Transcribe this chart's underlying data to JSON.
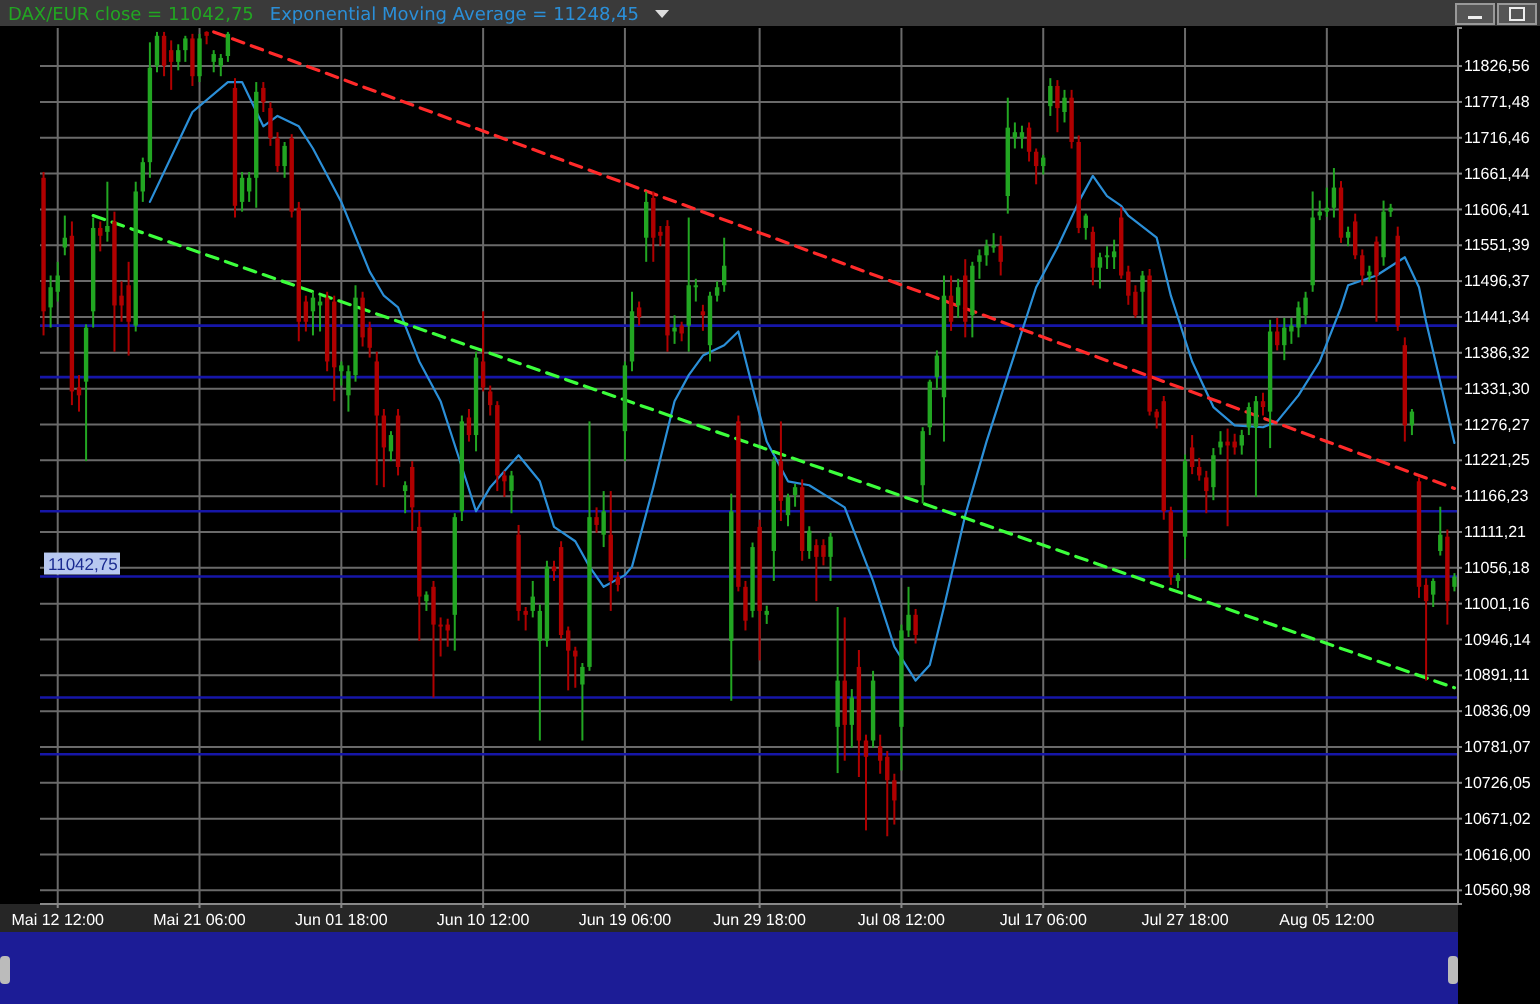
{
  "chart_data": {
    "type": "candlestick",
    "categories": [
      null,
      null,
      "Mai 12 12:00",
      null,
      null,
      null,
      null,
      null,
      null,
      null,
      null,
      null,
      null,
      null,
      null,
      null,
      null,
      null,
      null,
      null,
      null,
      null,
      "Mai 21 06:00",
      null,
      null,
      null,
      null,
      null,
      null,
      null,
      null,
      null,
      null,
      null,
      null,
      null,
      null,
      null,
      null,
      null,
      null,
      null,
      "Jun 01 18:00",
      null,
      null,
      null,
      null,
      null,
      null,
      null,
      null,
      null,
      null,
      null,
      null,
      null,
      null,
      null,
      null,
      null,
      null,
      null,
      "Jun 10 12:00",
      null,
      null,
      null,
      null,
      null,
      null,
      null,
      null,
      null,
      null,
      null,
      null,
      null,
      null,
      null,
      null,
      null,
      null,
      null,
      "Jun 19 06:00",
      null,
      null,
      null,
      null,
      null,
      null,
      null,
      null,
      null,
      null,
      null,
      null,
      null,
      null,
      null,
      null,
      null,
      null,
      "Jun 29 18:00",
      null,
      null,
      null,
      null,
      null,
      null,
      null,
      null,
      null,
      null,
      null,
      null,
      null,
      null,
      null,
      null,
      null,
      null,
      null,
      "Jul 08 12:00",
      null,
      null,
      null,
      null,
      null,
      null,
      null,
      null,
      null,
      null,
      null,
      null,
      null,
      null,
      null,
      null,
      null,
      null,
      null,
      "Jul 17 06:00",
      null,
      null,
      null,
      null,
      null,
      null,
      null,
      null,
      null,
      null,
      null,
      null,
      null,
      null,
      null,
      null,
      null,
      null,
      null,
      "Jul 27 18:00",
      null,
      null,
      null,
      null,
      null,
      null,
      null,
      null,
      null,
      null,
      null,
      null,
      null,
      null,
      null,
      null,
      null,
      null,
      null,
      "Aug 05 12:00",
      null,
      null,
      null,
      null,
      null,
      null,
      null,
      null,
      null,
      null,
      null,
      null,
      null,
      null,
      null,
      null,
      null,
      null
    ],
    "ylim": [
      10540,
      11885
    ],
    "yticks": [
      {
        "value": 10560.98,
        "label": "10560,98"
      },
      {
        "value": 10616.0,
        "label": "10616,00"
      },
      {
        "value": 10671.02,
        "label": "10671,02"
      },
      {
        "value": 10726.05,
        "label": "10726,05"
      },
      {
        "value": 10781.07,
        "label": "10781,07"
      },
      {
        "value": 10836.09,
        "label": "10836,09"
      },
      {
        "value": 10891.11,
        "label": "10891,11"
      },
      {
        "value": 10946.14,
        "label": "10946,14"
      },
      {
        "value": 11001.16,
        "label": "11001,16"
      },
      {
        "value": 11056.18,
        "label": "11056,18"
      },
      {
        "value": 11111.21,
        "label": "11111,21"
      },
      {
        "value": 11166.23,
        "label": "11166,23"
      },
      {
        "value": 11221.25,
        "label": "11221,25"
      },
      {
        "value": 11276.27,
        "label": "11276,27"
      },
      {
        "value": 11331.3,
        "label": "11331,30"
      },
      {
        "value": 11386.32,
        "label": "11386,32"
      },
      {
        "value": 11441.34,
        "label": "11441,34"
      },
      {
        "value": 11496.37,
        "label": "11496,37"
      },
      {
        "value": 11551.39,
        "label": "11551,39"
      },
      {
        "value": 11606.41,
        "label": "11606,41"
      },
      {
        "value": 11661.44,
        "label": "11661,44"
      },
      {
        "value": 11716.46,
        "label": "11716,46"
      },
      {
        "value": 11771.48,
        "label": "11771,48"
      },
      {
        "value": 11826.56,
        "label": "11826,56"
      }
    ],
    "grid": true,
    "legend": "top left",
    "ref_lines": [
      {
        "axis": "y",
        "value": 11428,
        "color": "#1616a8"
      },
      {
        "axis": "y",
        "value": 11349,
        "color": "#1616a8"
      },
      {
        "axis": "y",
        "value": 11143,
        "color": "#1616a8"
      },
      {
        "axis": "y",
        "value": 11042.75,
        "label": "11042,75",
        "color": "#1616a8"
      },
      {
        "axis": "y",
        "value": 10857,
        "color": "#1616a8"
      },
      {
        "axis": "y",
        "value": 10770,
        "color": "#1616a8"
      }
    ],
    "series": [
      {
        "name": "DAX/EUR close = 11042,75",
        "color": "#22a622",
        "colors": [
          "#b00000",
          "#22a622",
          "#22a622",
          "#22a622",
          "#b00000",
          "#b00000",
          "#22a622",
          "#22a622",
          "#b00000",
          "#22a622",
          "#b00000",
          "#b00000",
          "#b00000",
          "#22a622",
          "#22a622",
          "#22a622",
          "#22a622",
          "#b00000",
          "#b00000",
          "#22a622",
          "#22a622",
          "#b00000",
          "#22a622",
          "#b00000",
          "#22a622",
          "#22a622",
          "#22a622",
          "#b00000",
          "#22a622",
          "#22a622",
          "#22a622",
          "#b00000",
          "#b00000",
          "#b00000",
          "#22a622",
          "#b00000",
          "#b00000",
          "#b00000",
          "#22a622",
          "#22a622",
          "#b00000",
          "#b00000",
          "#22a622",
          "#22a622",
          "#22a622",
          "#b00000",
          "#b00000",
          "#b00000",
          "#b00000",
          "#22a622",
          "#b00000",
          "#22a622",
          "#b00000",
          "#b00000",
          "#22a622",
          "#b00000",
          "#b00000",
          "#b00000",
          "#22a622",
          "#22a622",
          "#b00000",
          "#22a622",
          "#b00000",
          "#b00000",
          "#b00000",
          "#b00000",
          "#22a622",
          "#b00000",
          "#b00000",
          "#22a622",
          "#22a622",
          "#22a622",
          "#b00000",
          "#b00000",
          "#b00000",
          "#b00000",
          "#22a622",
          "#22a622",
          "#b00000",
          "#22a622",
          "#b00000",
          "#b00000",
          "#22a622",
          "#22a622",
          "#b00000",
          "#22a622",
          "#b00000",
          "#b00000",
          "#b00000",
          "#22a622",
          "#b00000",
          "#22a622",
          "#22a622",
          "#b00000",
          "#22a622",
          "#22a622",
          "#22a622",
          "#22a622",
          "#b00000",
          "#b00000",
          "#22a622",
          "#b00000",
          "#22a622",
          "#22a622",
          "#b00000",
          "#22a622",
          "#22a622",
          "#b00000",
          "#22a622",
          "#b00000",
          "#b00000",
          "#22a622",
          "#22a622",
          "#b00000",
          "#22a622",
          "#b00000",
          "#b00000",
          "#22a622",
          "#b00000",
          "#b00000",
          "#b00000",
          "#22a622",
          "#22a622",
          "#b00000",
          "#22a622",
          "#22a622",
          "#22a622",
          "#22a622",
          "#b00000",
          "#22a622",
          "#b00000",
          "#22a622",
          "#22a622",
          "#22a622",
          "#22a622",
          "#b00000",
          "#22a622",
          "#22a622",
          "#22a622",
          "#b00000",
          "#b00000",
          "#22a622",
          "#22a622",
          "#b00000",
          "#22a622",
          "#b00000",
          "#b00000",
          "#22a622",
          "#b00000",
          "#22a622",
          "#22a622",
          "#22a622",
          "#b00000",
          "#b00000",
          "#b00000",
          "#22a622",
          "#b00000",
          "#b00000",
          "#b00000",
          "#b00000",
          "#22a622",
          "#22a622",
          "#b00000",
          "#b00000",
          "#b00000",
          "#22a622",
          "#22a622",
          "#b00000",
          "#b00000",
          "#22a622",
          "#22a622",
          "#22a622",
          "#b00000",
          "#22a622",
          "#b00000",
          "#22a622",
          "#22a622",
          "#22a622",
          "#22a622",
          "#22a622",
          "#22a622",
          "#22a622",
          "#22a622",
          "#b00000",
          "#22a622",
          "#b00000",
          "#b00000",
          "#22a622",
          "#b00000",
          "#22a622",
          "#22a622",
          "#b00000",
          "#b00000",
          "#22a622",
          "#b00000",
          "#b00000",
          "#22a622",
          "#22a622",
          "#b00000",
          "#22a622"
        ],
        "ohlc": [
          [
            11655,
            11664,
            11413,
            11450
          ],
          [
            11456,
            11505,
            11425,
            11487
          ],
          [
            11480,
            11526,
            11465,
            11505
          ],
          [
            11548,
            11597,
            11536,
            11563
          ],
          [
            11566,
            11588,
            11306,
            11327
          ],
          [
            11333,
            11352,
            11296,
            11321
          ],
          [
            11342,
            11430,
            11220,
            11425
          ],
          [
            11450,
            11594,
            11425,
            11578
          ],
          [
            11578,
            11588,
            11542,
            11566
          ],
          [
            11572,
            11649,
            11557,
            11581
          ],
          [
            11588,
            11603,
            11388,
            11459
          ],
          [
            11474,
            11496,
            11434,
            11459
          ],
          [
            11490,
            11526,
            11382,
            11434
          ],
          [
            11428,
            11649,
            11419,
            11634
          ],
          [
            11634,
            11686,
            11618,
            11679
          ],
          [
            11679,
            11863,
            11655,
            11824
          ],
          [
            11827,
            11879,
            11817,
            11873
          ],
          [
            11873,
            11879,
            11811,
            11827
          ],
          [
            11851,
            11866,
            11790,
            11833
          ],
          [
            11833,
            11860,
            11820,
            11851
          ],
          [
            11851,
            11873,
            11833,
            11869
          ],
          [
            11869,
            11876,
            11796,
            11811
          ],
          [
            11811,
            11876,
            11802,
            11869
          ],
          [
            11879,
            11880,
            11860,
            11873
          ],
          [
            11833,
            11851,
            11817,
            11845
          ],
          [
            11827,
            11845,
            11811,
            11839
          ],
          [
            11842,
            11879,
            11833,
            11876
          ],
          [
            11793,
            11808,
            11594,
            11612
          ],
          [
            11618,
            11664,
            11603,
            11655
          ],
          [
            11634,
            11664,
            11618,
            11655
          ],
          [
            11655,
            11802,
            11609,
            11787
          ],
          [
            11793,
            11802,
            11756,
            11771
          ],
          [
            11762,
            11771,
            11704,
            11716
          ],
          [
            11716,
            11725,
            11664,
            11673
          ],
          [
            11673,
            11710,
            11655,
            11704
          ],
          [
            11716,
            11722,
            11594,
            11603
          ],
          [
            11609,
            11618,
            11404,
            11434
          ],
          [
            11465,
            11474,
            11419,
            11434
          ],
          [
            11450,
            11480,
            11413,
            11471
          ],
          [
            11459,
            11474,
            11419,
            11465
          ],
          [
            11471,
            11480,
            11358,
            11373
          ],
          [
            11465,
            11474,
            11312,
            11364
          ],
          [
            11358,
            11373,
            11336,
            11367
          ],
          [
            11321,
            11367,
            11296,
            11358
          ],
          [
            11352,
            11490,
            11342,
            11471
          ],
          [
            11471,
            11480,
            11396,
            11410
          ],
          [
            11425,
            11434,
            11379,
            11394
          ],
          [
            11373,
            11388,
            11183,
            11290
          ],
          [
            11290,
            11300,
            11180,
            11241
          ],
          [
            11235,
            11266,
            11220,
            11260
          ],
          [
            11290,
            11300,
            11198,
            11211
          ],
          [
            11174,
            11189,
            11140,
            11183
          ],
          [
            11211,
            11220,
            11113,
            11149
          ],
          [
            11119,
            11143,
            10944,
            11012
          ],
          [
            11005,
            11020,
            10990,
            11015
          ],
          [
            11027,
            11036,
            10857,
            10969
          ],
          [
            10969,
            10980,
            10920,
            10966
          ],
          [
            10969,
            10978,
            10935,
            10960
          ],
          [
            10984,
            11140,
            10929,
            11134
          ],
          [
            11143,
            11290,
            11128,
            11281
          ],
          [
            11287,
            11300,
            11250,
            11260
          ],
          [
            11260,
            11388,
            11235,
            11379
          ],
          [
            11373,
            11450,
            11327,
            11333
          ],
          [
            11327,
            11336,
            11290,
            11306
          ],
          [
            11306,
            11312,
            11174,
            11198
          ],
          [
            11198,
            11205,
            11165,
            11189
          ],
          [
            11174,
            11205,
            11140,
            11198
          ],
          [
            11107,
            11122,
            10975,
            10990
          ],
          [
            10990,
            10996,
            10960,
            10984
          ],
          [
            10990,
            11036,
            10980,
            11012
          ],
          [
            10944,
            11000,
            10791,
            10990
          ],
          [
            10944,
            11067,
            10935,
            11058
          ],
          [
            11058,
            11067,
            11036,
            11051
          ],
          [
            11088,
            11097,
            10947,
            10953
          ],
          [
            10960,
            10966,
            10868,
            10929
          ],
          [
            10929,
            10935,
            10872,
            10920
          ],
          [
            10877,
            10910,
            10791,
            10904
          ],
          [
            10904,
            11281,
            10898,
            11134
          ],
          [
            11134,
            11149,
            11110,
            11122
          ],
          [
            11107,
            11174,
            11088,
            11143
          ],
          [
            11107,
            11174,
            10990,
            11036
          ],
          [
            11042,
            11050,
            11020,
            11030
          ],
          [
            11266,
            11373,
            11220,
            11367
          ],
          [
            11373,
            11480,
            11358,
            11450
          ],
          [
            11456,
            11465,
            11428,
            11441
          ],
          [
            11563,
            11634,
            11526,
            11618
          ],
          [
            11624,
            11634,
            11526,
            11563
          ],
          [
            11572,
            11581,
            11550,
            11566
          ],
          [
            11581,
            11590,
            11388,
            11413
          ],
          [
            11419,
            11444,
            11400,
            11425
          ],
          [
            11428,
            11434,
            11404,
            11416
          ],
          [
            11428,
            11594,
            11388,
            11490
          ],
          [
            11487,
            11500,
            11465,
            11490
          ],
          [
            11450,
            11460,
            11420,
            11444
          ],
          [
            11398,
            11480,
            11373,
            11474
          ],
          [
            11474,
            11496,
            11465,
            11487
          ],
          [
            11490,
            11563,
            11480,
            11520
          ],
          [
            10944,
            11170,
            10852,
            11143
          ],
          [
            11281,
            11290,
            11020,
            11027
          ],
          [
            11027,
            11036,
            10960,
            10975
          ],
          [
            10990,
            11095,
            10980,
            11088
          ],
          [
            11119,
            11130,
            10914,
            10990
          ],
          [
            10984,
            10998,
            10970,
            10990
          ],
          [
            11082,
            11226,
            11036,
            11220
          ],
          [
            11220,
            11281,
            11128,
            11159
          ],
          [
            11137,
            11170,
            11120,
            11165
          ],
          [
            11168,
            11185,
            11150,
            11180
          ],
          [
            11180,
            11192,
            11067,
            11082
          ],
          [
            11082,
            11120,
            11070,
            11113
          ],
          [
            11091,
            11100,
            11005,
            11073
          ],
          [
            11091,
            11100,
            11060,
            11073
          ],
          [
            11073,
            11110,
            11036,
            11104
          ],
          [
            10812,
            10996,
            10741,
            10883
          ],
          [
            10883,
            10980,
            10760,
            10815
          ],
          [
            10815,
            10870,
            10780,
            10857
          ],
          [
            10904,
            10930,
            10735,
            10791
          ],
          [
            10791,
            10800,
            10653,
            10766
          ],
          [
            10791,
            10898,
            10780,
            10883
          ],
          [
            10782,
            10800,
            10740,
            10760
          ],
          [
            10766,
            10775,
            10644,
            10730
          ],
          [
            10730,
            10740,
            10662,
            10699
          ],
          [
            10812,
            10969,
            10745,
            10960
          ],
          [
            10960,
            11027,
            10950,
            10984
          ],
          [
            10984,
            10993,
            10940,
            10953
          ],
          [
            11183,
            11272,
            11155,
            11266
          ],
          [
            11272,
            11345,
            11260,
            11342
          ],
          [
            11349,
            11390,
            11330,
            11382
          ],
          [
            11318,
            11505,
            11250,
            11474
          ],
          [
            11474,
            11505,
            11420,
            11434
          ],
          [
            11459,
            11500,
            11440,
            11487
          ],
          [
            11505,
            11530,
            11410,
            11434
          ],
          [
            11444,
            11526,
            11410,
            11520
          ],
          [
            11526,
            11545,
            11500,
            11536
          ],
          [
            11536,
            11560,
            11520,
            11551
          ],
          [
            11548,
            11570,
            11540,
            11551
          ],
          [
            11551,
            11566,
            11505,
            11526
          ],
          [
            11627,
            11778,
            11600,
            11732
          ],
          [
            11716,
            11740,
            11700,
            11725
          ],
          [
            11716,
            11735,
            11700,
            11725
          ],
          [
            11732,
            11740,
            11680,
            11695
          ],
          [
            11695,
            11700,
            11645,
            11673
          ],
          [
            11673,
            11690,
            11660,
            11686
          ],
          [
            11765,
            11808,
            11750,
            11796
          ],
          [
            11796,
            11805,
            11725,
            11762
          ],
          [
            11756,
            11790,
            11740,
            11778
          ],
          [
            11778,
            11790,
            11700,
            11710
          ],
          [
            11710,
            11720,
            11570,
            11578
          ],
          [
            11578,
            11600,
            11560,
            11597
          ],
          [
            11572,
            11580,
            11490,
            11517
          ],
          [
            11517,
            11540,
            11485,
            11533
          ],
          [
            11533,
            11550,
            11515,
            11536
          ],
          [
            11533,
            11560,
            11515,
            11542
          ],
          [
            11594,
            11610,
            11500,
            11505
          ],
          [
            11511,
            11520,
            11460,
            11474
          ],
          [
            11480,
            11490,
            11440,
            11444
          ],
          [
            11480,
            11512,
            11430,
            11505
          ],
          [
            11505,
            11515,
            11290,
            11296
          ],
          [
            11296,
            11300,
            11270,
            11287
          ],
          [
            11312,
            11320,
            11130,
            11143
          ],
          [
            11143,
            11150,
            11030,
            11042
          ],
          [
            11036,
            11048,
            11025,
            11045
          ],
          [
            11104,
            11230,
            11070,
            11220
          ],
          [
            11241,
            11260,
            11200,
            11211
          ],
          [
            11211,
            11225,
            11190,
            11198
          ],
          [
            11195,
            11205,
            11140,
            11174
          ],
          [
            11180,
            11240,
            11160,
            11229
          ],
          [
            11241,
            11266,
            11230,
            11250
          ],
          [
            11250,
            11270,
            11120,
            11244
          ],
          [
            11250,
            11262,
            11230,
            11241
          ],
          [
            11244,
            11268,
            11230,
            11260
          ],
          [
            11272,
            11310,
            11260,
            11303
          ],
          [
            11272,
            11320,
            11165,
            11312
          ],
          [
            11312,
            11325,
            11290,
            11303
          ],
          [
            11296,
            11437,
            11240,
            11419
          ],
          [
            11419,
            11440,
            11390,
            11398
          ],
          [
            11398,
            11440,
            11375,
            11425
          ],
          [
            11419,
            11440,
            11400,
            11428
          ],
          [
            11425,
            11465,
            11410,
            11456
          ],
          [
            11444,
            11480,
            11430,
            11471
          ],
          [
            11490,
            11634,
            11480,
            11594
          ],
          [
            11597,
            11620,
            11590,
            11603
          ],
          [
            11603,
            11640,
            11595,
            11609
          ],
          [
            11609,
            11670,
            11594,
            11640
          ],
          [
            11640,
            11650,
            11555,
            11563
          ],
          [
            11563,
            11580,
            11550,
            11572
          ],
          [
            11588,
            11600,
            11530,
            11536
          ],
          [
            11536,
            11545,
            11490,
            11505
          ],
          [
            11505,
            11520,
            11495,
            11511
          ],
          [
            11557,
            11565,
            11434,
            11505
          ],
          [
            11533,
            11620,
            11520,
            11603
          ],
          [
            11603,
            11615,
            11595,
            11609
          ],
          [
            11566,
            11580,
            11420,
            11428
          ],
          [
            11398,
            11410,
            11250,
            11275
          ],
          [
            11275,
            11300,
            11260,
            11296
          ],
          [
            11189,
            11195,
            11010,
            11027
          ],
          [
            11030,
            11040,
            10883,
            11005
          ],
          [
            11015,
            11040,
            10996,
            11036
          ],
          [
            11082,
            11150,
            11075,
            11107
          ],
          [
            11104,
            11115,
            10969,
            11005
          ],
          [
            11027,
            11048,
            11020,
            11042.75
          ]
        ]
      },
      {
        "name": "Exponential Moving Average = 11248,45",
        "type": "line",
        "color": "#2b8fd8",
        "values": [
          null,
          null,
          null,
          null,
          null,
          null,
          null,
          null,
          null,
          null,
          null,
          null,
          null,
          null,
          null,
          11618,
          null,
          null,
          null,
          null,
          null,
          11756,
          null,
          null,
          null,
          null,
          11802,
          null,
          11802,
          null,
          null,
          11734,
          null,
          11750,
          null,
          null,
          11734,
          null,
          11700,
          null,
          null,
          null,
          11618,
          null,
          null,
          null,
          11511,
          null,
          11474,
          null,
          11456,
          null,
          null,
          11373,
          null,
          null,
          11312,
          null,
          null,
          11211,
          null,
          11143,
          null,
          11180,
          null,
          null,
          null,
          11229,
          null,
          null,
          11189,
          null,
          11119,
          null,
          null,
          11097,
          null,
          11058,
          null,
          11027,
          null,
          null,
          11045,
          11058,
          null,
          null,
          11180,
          null,
          null,
          11312,
          null,
          11352,
          null,
          11382,
          null,
          null,
          11398,
          null,
          11419,
          null,
          11333,
          null,
          11250,
          null,
          null,
          11189,
          null,
          null,
          11183,
          null,
          null,
          null,
          null,
          11149,
          null,
          null,
          null,
          11036,
          null,
          null,
          10935,
          null,
          null,
          10883,
          null,
          10907,
          null,
          10996,
          null,
          null,
          11137,
          null,
          null,
          11250,
          null,
          null,
          11352,
          null,
          null,
          null,
          11487,
          null,
          null,
          11548,
          null,
          null,
          11618,
          null,
          11658,
          null,
          11627,
          null,
          11612,
          11597,
          null,
          null,
          null,
          11563,
          null,
          11474,
          null,
          null,
          11373,
          null,
          null,
          11303,
          null,
          null,
          11275,
          null,
          null,
          null,
          11272,
          null,
          11281,
          null,
          null,
          11321,
          null,
          null,
          11373,
          null,
          null,
          11456,
          11490,
          null,
          null,
          null,
          11505,
          null,
          null,
          null,
          11533,
          null,
          11487,
          11434,
          null,
          11342,
          null,
          11248
        ]
      },
      {
        "type": "line",
        "color": "#ff2a2a",
        "line_style": "dashed",
        "values": [
          null,
          null,
          null,
          null,
          null,
          null,
          null,
          null,
          null,
          null,
          null,
          null,
          null,
          null,
          null,
          null,
          null,
          null,
          null,
          null,
          null,
          null,
          null,
          null,
          11879,
          null,
          null,
          null,
          null,
          null,
          null,
          null,
          null,
          null,
          null,
          null,
          null,
          null,
          null,
          null,
          null,
          null,
          null,
          null,
          null,
          null,
          null,
          null,
          null,
          null,
          null,
          null,
          null,
          null,
          null,
          null,
          null,
          null,
          null,
          null,
          null,
          null,
          null,
          null,
          null,
          null,
          null,
          null,
          null,
          null,
          null,
          null,
          null,
          null,
          null,
          null,
          null,
          null,
          null,
          null,
          null,
          null,
          null,
          null,
          null,
          null,
          null,
          null,
          null,
          null,
          null,
          null,
          null,
          null,
          null,
          null,
          null,
          null,
          null,
          null,
          null,
          null,
          null,
          null,
          null,
          null,
          null,
          null,
          null,
          null,
          null,
          null,
          null,
          null,
          null,
          null,
          null,
          null,
          null,
          null,
          null,
          null,
          null,
          null,
          null,
          null,
          null,
          null,
          null,
          null,
          null,
          null,
          null,
          null,
          null,
          null,
          null,
          null,
          null,
          null,
          null,
          null,
          null,
          null,
          null,
          null,
          null,
          null,
          null,
          null,
          null,
          null,
          null,
          null,
          null,
          null,
          null,
          null,
          null,
          null,
          null,
          null,
          null,
          null,
          null,
          null,
          null,
          null,
          null,
          null,
          null,
          null,
          null,
          null,
          null,
          null,
          null,
          null,
          null,
          null,
          null,
          null,
          null,
          null,
          null,
          null,
          null,
          null,
          null,
          null,
          null,
          null,
          null,
          null,
          null,
          null,
          null,
          null,
          null,
          11178
        ]
      },
      {
        "type": "line",
        "color": "#3cff3c",
        "line_style": "dashed",
        "values": [
          null,
          null,
          null,
          null,
          null,
          null,
          null,
          11597,
          null,
          null,
          null,
          null,
          null,
          null,
          null,
          null,
          null,
          null,
          null,
          null,
          null,
          null,
          null,
          null,
          null,
          null,
          null,
          null,
          null,
          null,
          null,
          null,
          null,
          null,
          null,
          null,
          null,
          null,
          null,
          null,
          null,
          null,
          null,
          null,
          null,
          null,
          null,
          null,
          null,
          null,
          null,
          null,
          null,
          null,
          null,
          null,
          null,
          null,
          null,
          null,
          null,
          null,
          null,
          null,
          null,
          null,
          null,
          null,
          null,
          null,
          null,
          null,
          null,
          null,
          null,
          null,
          null,
          null,
          null,
          null,
          null,
          null,
          null,
          null,
          null,
          null,
          null,
          null,
          null,
          null,
          null,
          null,
          null,
          null,
          null,
          null,
          null,
          null,
          null,
          null,
          null,
          null,
          null,
          null,
          null,
          null,
          null,
          null,
          null,
          null,
          null,
          null,
          null,
          null,
          null,
          null,
          null,
          null,
          null,
          null,
          null,
          null,
          null,
          null,
          null,
          null,
          null,
          null,
          null,
          null,
          null,
          null,
          null,
          null,
          null,
          null,
          null,
          null,
          null,
          null,
          null,
          null,
          null,
          null,
          null,
          null,
          null,
          null,
          null,
          null,
          null,
          null,
          null,
          null,
          null,
          null,
          null,
          null,
          null,
          null,
          null,
          null,
          null,
          null,
          null,
          null,
          null,
          null,
          null,
          null,
          null,
          null,
          null,
          null,
          null,
          null,
          null,
          null,
          null,
          null,
          null,
          null,
          null,
          null,
          null,
          null,
          null,
          null,
          null,
          null,
          null,
          null,
          null,
          null,
          null,
          null,
          null,
          null,
          null,
          10872
        ]
      }
    ]
  }
}
